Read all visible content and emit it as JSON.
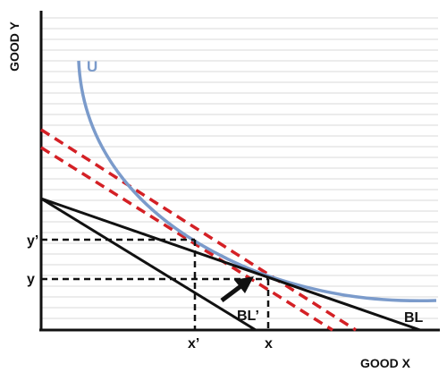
{
  "axes": {
    "y_title": "GOOD Y",
    "x_title": "GOOD X"
  },
  "ticks": {
    "y_prime": "y’",
    "y": "y",
    "x_prime": "x’",
    "x": "x"
  },
  "labels": {
    "indifference_curve": "U",
    "budget_line": "BL",
    "budget_line_new": "BL’"
  },
  "colors": {
    "indifference_curve": "#7b9bcb",
    "parallel_lines": "#d42025",
    "budget_lines": "#111111",
    "grid": "#d9d9d9"
  }
}
